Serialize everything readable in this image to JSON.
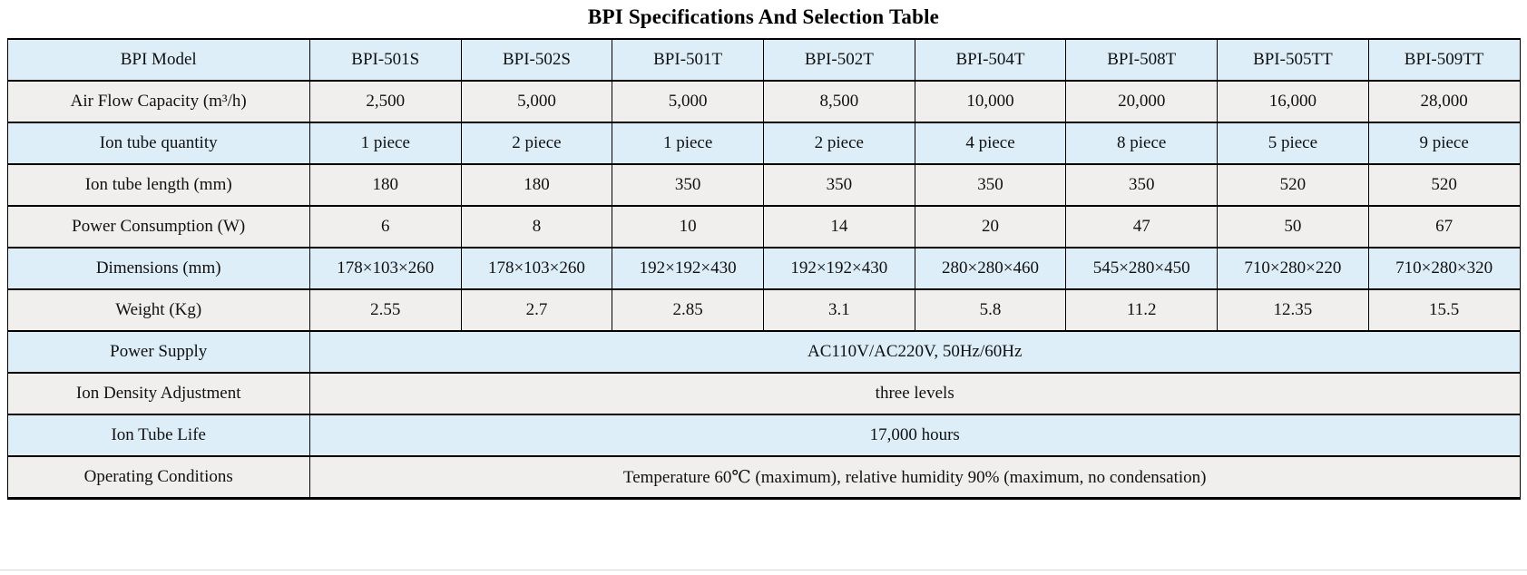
{
  "title": "BPI Specifications And Selection Table",
  "colors": {
    "row_blue": "#ddeef8",
    "row_gray": "#f0efee",
    "border": "#000000"
  },
  "table": {
    "header": {
      "label": "BPI Model",
      "tone": "blue",
      "models": [
        "BPI-501S",
        "BPI-502S",
        "BPI-501T",
        "BPI-502T",
        "BPI-504T",
        "BPI-508T",
        "BPI-505TT",
        "BPI-509TT"
      ]
    },
    "spec_rows": [
      {
        "label": "Air Flow Capacity (m³/h)",
        "tone": "gray",
        "values": [
          "2,500",
          "5,000",
          "5,000",
          "8,500",
          "10,000",
          "20,000",
          "16,000",
          "28,000"
        ]
      },
      {
        "label": "Ion tube quantity",
        "tone": "blue",
        "values": [
          "1 piece",
          "2 piece",
          "1 piece",
          "2 piece",
          "4 piece",
          "8 piece",
          "5 piece",
          "9 piece"
        ]
      },
      {
        "label": "Ion tube length (mm)",
        "tone": "gray",
        "values": [
          "180",
          "180",
          "350",
          "350",
          "350",
          "350",
          "520",
          "520"
        ]
      },
      {
        "label": "Power Consumption (W)",
        "tone": "gray",
        "values": [
          "6",
          "8",
          "10",
          "14",
          "20",
          "47",
          "50",
          "67"
        ]
      },
      {
        "label": "Dimensions (mm)",
        "tone": "blue",
        "values": [
          "178×103×260",
          "178×103×260",
          "192×192×430",
          "192×192×430",
          "280×280×460",
          "545×280×450",
          "710×280×220",
          "710×280×320"
        ]
      },
      {
        "label": "Weight (Kg)",
        "tone": "gray",
        "values": [
          "2.55",
          "2.7",
          "2.85",
          "3.1",
          "5.8",
          "11.2",
          "12.35",
          "15.5"
        ]
      }
    ],
    "span_rows": [
      {
        "label": "Power Supply",
        "tone": "blue",
        "value": "AC110V/AC220V, 50Hz/60Hz"
      },
      {
        "label": "Ion Density Adjustment",
        "tone": "gray",
        "value": "three levels"
      },
      {
        "label": "Ion Tube Life",
        "tone": "blue",
        "value": "17,000 hours"
      },
      {
        "label": "Operating Conditions",
        "tone": "gray",
        "value": "Temperature 60℃ (maximum), relative humidity 90% (maximum, no condensation)"
      }
    ]
  }
}
